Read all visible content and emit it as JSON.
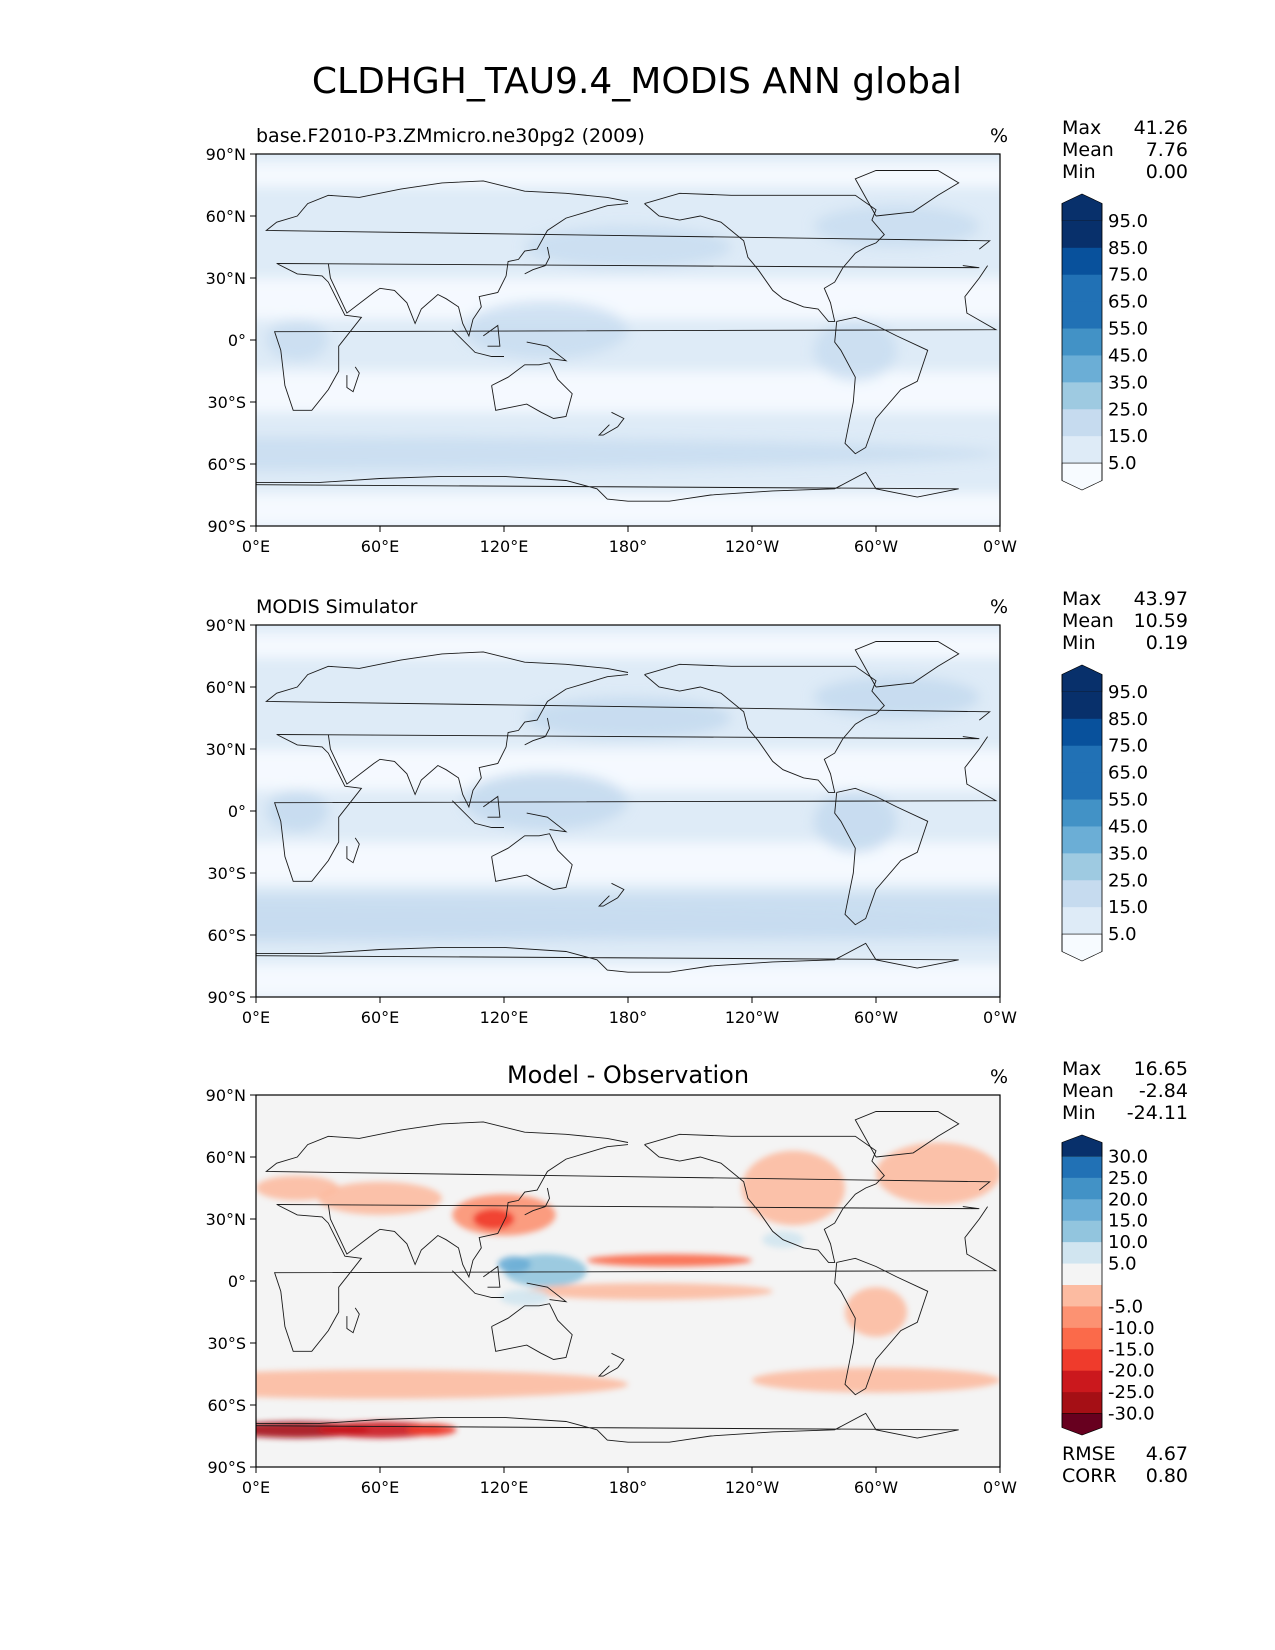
{
  "figure": {
    "title": "CLDHGH_TAU9.4_MODIS ANN global"
  },
  "axes": {
    "lat_ticks": [
      "90°N",
      "60°N",
      "30°N",
      "0°",
      "30°S",
      "60°S",
      "90°S"
    ],
    "lon_ticks": [
      "0°E",
      "60°E",
      "120°E",
      "180°",
      "120°W",
      "60°W",
      "0°W"
    ]
  },
  "colors": {
    "seq_levels": [
      "#f7fbff",
      "#deebf7",
      "#c6dbef",
      "#9ecae1",
      "#6baed6",
      "#4292c6",
      "#2171b5",
      "#08519c",
      "#08306b"
    ],
    "div_levels": [
      "#67001f",
      "#a50f15",
      "#cb181d",
      "#ef3b2c",
      "#fb6a4a",
      "#fc9272",
      "#fcbba1",
      "#f4f4f4",
      "#d1e5f0",
      "#92c5de",
      "#6baed6",
      "#4292c6",
      "#2171b5",
      "#08306b"
    ]
  },
  "chart_data": [
    {
      "type": "heatmap",
      "title": "base.F2010-P3.ZMmicro.ne30pg2 (2009)",
      "units": "%",
      "stats": [
        {
          "label": "Max",
          "value": "41.26"
        },
        {
          "label": "Mean",
          "value": "7.76"
        },
        {
          "label": "Min",
          "value": "0.00"
        }
      ],
      "colorbar_ticks": [
        "95.0",
        "85.0",
        "75.0",
        "65.0",
        "55.0",
        "45.0",
        "35.0",
        "25.0",
        "15.0",
        "5.0"
      ],
      "lat_range": [
        -90,
        90
      ],
      "lon_range": [
        0,
        360
      ]
    },
    {
      "type": "heatmap",
      "title": "MODIS Simulator",
      "units": "%",
      "stats": [
        {
          "label": "Max",
          "value": "43.97"
        },
        {
          "label": "Mean",
          "value": "10.59"
        },
        {
          "label": "Min",
          "value": "0.19"
        }
      ],
      "colorbar_ticks": [
        "95.0",
        "85.0",
        "75.0",
        "65.0",
        "55.0",
        "45.0",
        "35.0",
        "25.0",
        "15.0",
        "5.0"
      ],
      "lat_range": [
        -90,
        90
      ],
      "lon_range": [
        0,
        360
      ]
    },
    {
      "type": "heatmap",
      "title": "Model - Observation",
      "units": "%",
      "stats": [
        {
          "label": "Max",
          "value": "16.65"
        },
        {
          "label": "Mean",
          "value": "-2.84"
        },
        {
          "label": "Min",
          "value": "-24.11"
        }
      ],
      "colorbar_ticks": [
        "30.0",
        "25.0",
        "20.0",
        "15.0",
        "10.0",
        "5.0",
        "-5.0",
        "-10.0",
        "-15.0",
        "-20.0",
        "-25.0",
        "-30.0"
      ],
      "extra_stats": [
        {
          "label": "RMSE",
          "value": "4.67"
        },
        {
          "label": "CORR",
          "value": "0.80"
        }
      ],
      "lat_range": [
        -90,
        90
      ],
      "lon_range": [
        0,
        360
      ]
    }
  ]
}
